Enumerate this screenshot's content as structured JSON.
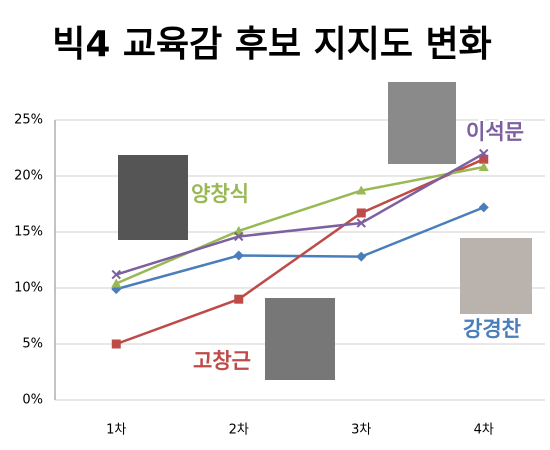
{
  "chart_data": {
    "type": "line",
    "title": "빅4 교육감 후보 지지도 변화",
    "categories": [
      "1차",
      "2차",
      "3차",
      "4차"
    ],
    "series": [
      {
        "name": "강경찬",
        "color": "#4a7ebb",
        "values": [
          9.9,
          12.9,
          12.8,
          17.2
        ]
      },
      {
        "name": "고창근",
        "color": "#be4b48",
        "values": [
          5.0,
          9.0,
          16.7,
          21.5
        ]
      },
      {
        "name": "양창식",
        "color": "#98b954",
        "values": [
          10.4,
          15.1,
          18.7,
          20.8
        ]
      },
      {
        "name": "이석문",
        "color": "#7d60a0",
        "values": [
          11.2,
          14.6,
          15.8,
          22.0
        ]
      }
    ],
    "ylim": [
      0,
      25
    ],
    "yticks": [
      {
        "value": 0,
        "label": "0%"
      },
      {
        "value": 5,
        "label": "5%"
      },
      {
        "value": 10,
        "label": "10%"
      },
      {
        "value": 15,
        "label": "15%"
      },
      {
        "value": 20,
        "label": "20%"
      },
      {
        "value": 25,
        "label": "25%"
      }
    ],
    "grid": true
  }
}
